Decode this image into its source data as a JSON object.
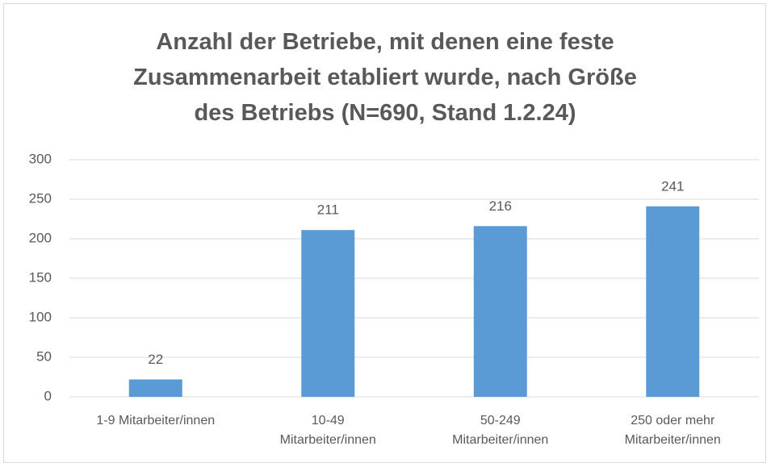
{
  "chart_data": {
    "type": "bar",
    "title": "Anzahl der Betriebe, mit denen eine feste Zusammenarbeit etabliert wurde, nach Größe des Betriebs (N=690, Stand 1.2.24)",
    "categories": [
      "1-9 Mitarbeiter/innen",
      "10-49 Mitarbeiter/innen",
      "50-249 Mitarbeiter/innen",
      "250 oder mehr Mitarbeiter/innen"
    ],
    "values": [
      22,
      211,
      216,
      241
    ],
    "color": "#5b9bd5",
    "ylim": [
      0,
      300
    ],
    "yticks": [
      0,
      50,
      100,
      150,
      200,
      250,
      300
    ],
    "grid": true
  }
}
